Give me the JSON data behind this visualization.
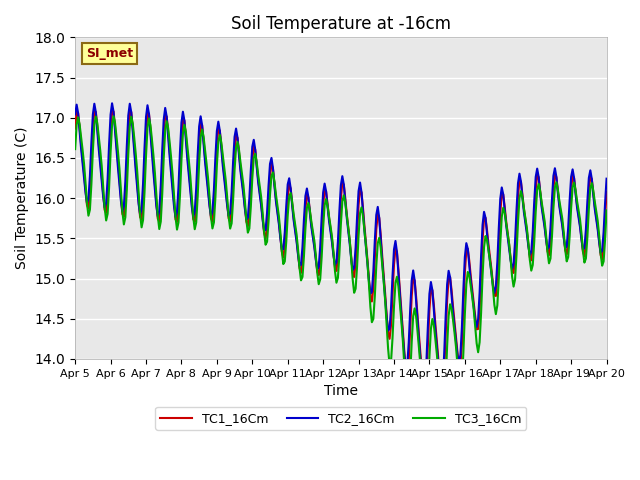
{
  "title": "Soil Temperature at -16cm",
  "xlabel": "Time",
  "ylabel": "Soil Temperature (C)",
  "ylim": [
    14.0,
    18.0
  ],
  "yticks": [
    14.0,
    14.5,
    15.0,
    15.5,
    16.0,
    16.5,
    17.0,
    17.5,
    18.0
  ],
  "bg_color": "#e8e8e8",
  "legend_label": "SI_met",
  "legend_text_color": "#8b0000",
  "legend_box_color": "#ffff99",
  "legend_box_edge": "#8b6914",
  "series": {
    "TC1_16Cm": {
      "color": "#cc0000",
      "lw": 1.5
    },
    "TC2_16Cm": {
      "color": "#0000cc",
      "lw": 1.5
    },
    "TC3_16Cm": {
      "color": "#00aa00",
      "lw": 1.5
    }
  },
  "xtick_labels": [
    "Apr 5",
    "Apr 6",
    "Apr 7",
    "Apr 8",
    "Apr 9",
    "Apr 10",
    "Apr 11",
    "Apr 12",
    "Apr 13",
    "Apr 14",
    "Apr 15",
    "Apr 16",
    "Apr 17",
    "Apr 18",
    "Apr 19",
    "Apr 20"
  ],
  "n_points": 361
}
